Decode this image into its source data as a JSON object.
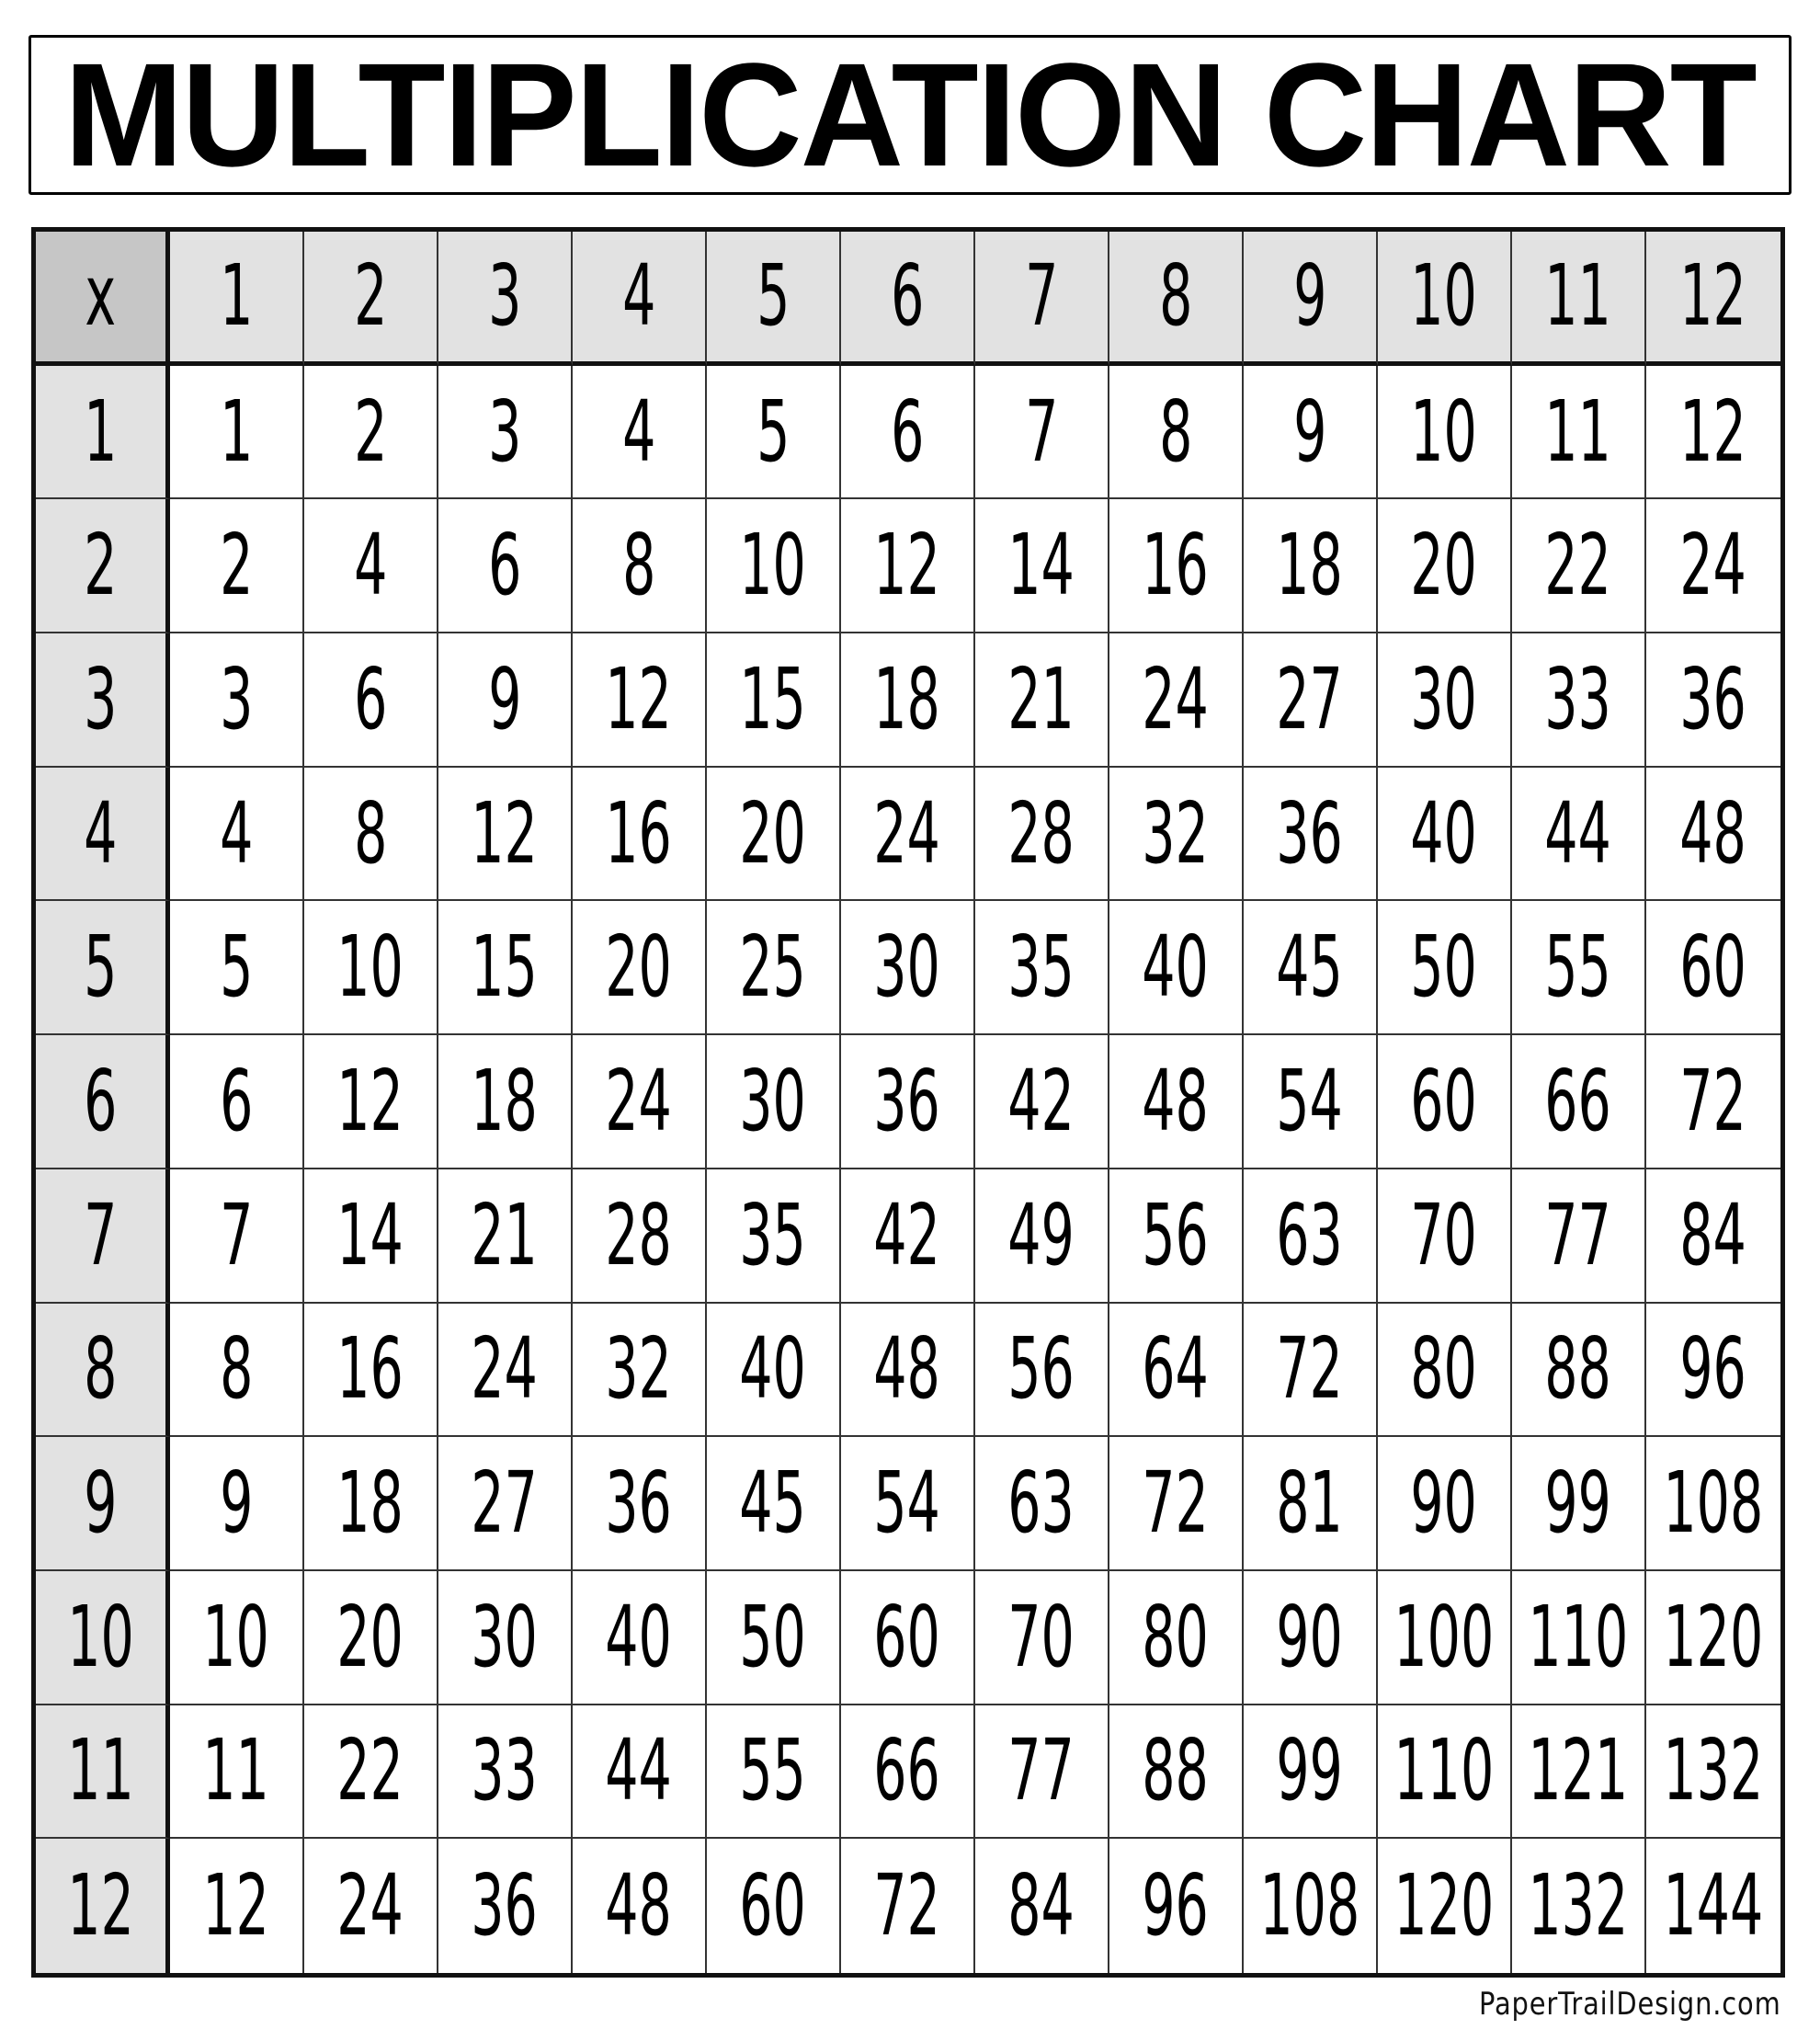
{
  "title": "MULTIPLICATION CHART",
  "footer": "PaperTrailDesign.com",
  "colors": {
    "corner": "#c6c6c6",
    "header": "#e2e2e2",
    "border": "#111111"
  },
  "chart_data": {
    "type": "table",
    "title": "MULTIPLICATION CHART",
    "corner_label": "x",
    "column_headers": [
      "1",
      "2",
      "3",
      "4",
      "5",
      "6",
      "7",
      "8",
      "9",
      "10",
      "11",
      "12"
    ],
    "row_headers": [
      "1",
      "2",
      "3",
      "4",
      "5",
      "6",
      "7",
      "8",
      "9",
      "10",
      "11",
      "12"
    ],
    "rows": [
      [
        1,
        2,
        3,
        4,
        5,
        6,
        7,
        8,
        9,
        10,
        11,
        12
      ],
      [
        2,
        4,
        6,
        8,
        10,
        12,
        14,
        16,
        18,
        20,
        22,
        24
      ],
      [
        3,
        6,
        9,
        12,
        15,
        18,
        21,
        24,
        27,
        30,
        33,
        36
      ],
      [
        4,
        8,
        12,
        16,
        20,
        24,
        28,
        32,
        36,
        40,
        44,
        48
      ],
      [
        5,
        10,
        15,
        20,
        25,
        30,
        35,
        40,
        45,
        50,
        55,
        60
      ],
      [
        6,
        12,
        18,
        24,
        30,
        36,
        42,
        48,
        54,
        60,
        66,
        72
      ],
      [
        7,
        14,
        21,
        28,
        35,
        42,
        49,
        56,
        63,
        70,
        77,
        84
      ],
      [
        8,
        16,
        24,
        32,
        40,
        48,
        56,
        64,
        72,
        80,
        88,
        96
      ],
      [
        9,
        18,
        27,
        36,
        45,
        54,
        63,
        72,
        81,
        90,
        99,
        108
      ],
      [
        10,
        20,
        30,
        40,
        50,
        60,
        70,
        80,
        90,
        100,
        110,
        120
      ],
      [
        11,
        22,
        33,
        44,
        55,
        66,
        77,
        88,
        99,
        110,
        121,
        132
      ],
      [
        12,
        24,
        36,
        48,
        60,
        72,
        84,
        96,
        108,
        120,
        132,
        144
      ]
    ]
  }
}
